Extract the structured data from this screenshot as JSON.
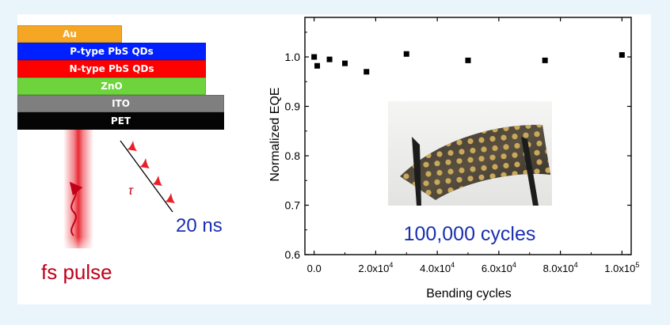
{
  "device_stack": {
    "layers": [
      {
        "name": "Au",
        "color": "#f5a623",
        "text_color": "#ffffff"
      },
      {
        "name": "P-type PbS QDs",
        "color": "#0020ff",
        "text_color": "#ffffff"
      },
      {
        "name": "N-type PbS QDs",
        "color": "#ff0000",
        "text_color": "#ffffff"
      },
      {
        "name": "ZnO",
        "color": "#6dd43b",
        "text_color": "#ffffff"
      },
      {
        "name": "ITO",
        "color": "#7f7f7f",
        "text_color": "#ffffff"
      },
      {
        "name": "PET",
        "color": "#050505",
        "text_color": "#ffffff"
      }
    ]
  },
  "pulse_diagram": {
    "fs_label": "fs pulse",
    "delay_symbol": "τ",
    "interval_label": "20 ns",
    "beam_color": "#e8202a",
    "label_color_red": "#c0001a",
    "label_color_blue": "#1a2fb0"
  },
  "chart_data": {
    "type": "scatter",
    "xlabel": "Bending cycles",
    "ylabel": "Normalized EQE",
    "xlim": [
      -3000,
      103000
    ],
    "ylim": [
      0.6,
      1.08
    ],
    "xticks": [
      0,
      20000,
      40000,
      60000,
      80000,
      100000
    ],
    "xtick_labels": [
      {
        "mant": "0.0",
        "exp": ""
      },
      {
        "mant": "2.0x10",
        "exp": "4"
      },
      {
        "mant": "4.0x10",
        "exp": "4"
      },
      {
        "mant": "6.0x10",
        "exp": "4"
      },
      {
        "mant": "8.0x10",
        "exp": "4"
      },
      {
        "mant": "1.0x10",
        "exp": "5"
      }
    ],
    "yticks": [
      0.6,
      0.7,
      0.8,
      0.9,
      1.0
    ],
    "ytick_labels": [
      "0.6",
      "0.7",
      "0.8",
      "0.9",
      "1.0"
    ],
    "x": [
      0,
      1000,
      5000,
      10000,
      17000,
      30000,
      50000,
      75000,
      100000
    ],
    "y": [
      1.0,
      0.982,
      0.995,
      0.987,
      0.97,
      1.006,
      0.993,
      0.993,
      1.004
    ],
    "marker_color": "#000000",
    "inset_caption": "100,000 cycles",
    "inset_caption_color": "#1a2fb0"
  }
}
